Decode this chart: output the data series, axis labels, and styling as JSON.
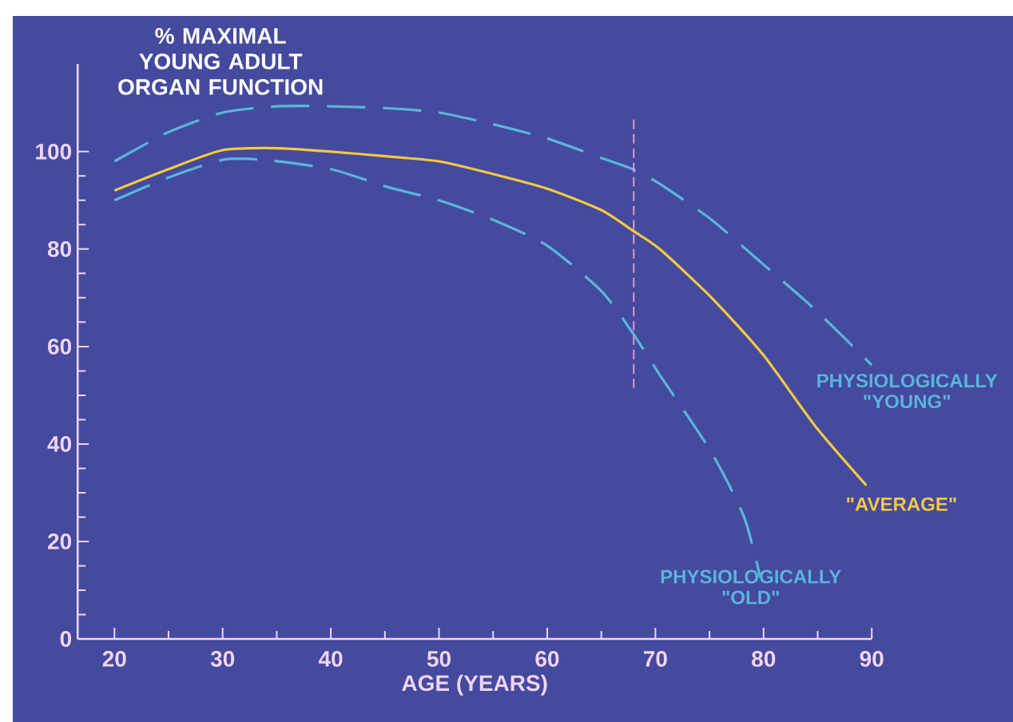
{
  "chart_data": {
    "type": "line",
    "ylabel": "% MAXIMAL YOUNG ADULT ORGAN FUNCTION",
    "xlabel": "AGE (YEARS)",
    "xlim": [
      16.6,
      90
    ],
    "ylim": [
      0,
      118
    ],
    "xticks": [
      20,
      30,
      40,
      50,
      60,
      70,
      80,
      90
    ],
    "yticks": [
      0,
      20,
      40,
      60,
      80,
      100
    ],
    "grid": false,
    "marker": "none",
    "series": [
      {
        "name": "PHYSIOLOGICALLY \"YOUNG\"",
        "color": "#5ab4dc",
        "line_style": "dashed",
        "x": [
          20,
          25,
          30,
          35,
          40,
          45.3,
          50,
          55,
          60,
          65,
          67.9,
          70.4,
          75.2,
          80,
          84.8,
          90
        ],
        "values": [
          98,
          104,
          108,
          109.3,
          109.3,
          108.9,
          108,
          105.6,
          102.7,
          98.7,
          96.4,
          93.4,
          86,
          76.8,
          67.5,
          56.2
        ]
      },
      {
        "name": "\"AVERAGE\"",
        "color": "#f5c842",
        "line_style": "solid",
        "x": [
          20,
          25,
          30,
          35,
          40,
          45.3,
          50,
          55,
          60,
          65,
          67.9,
          70.4,
          75.2,
          80,
          84.8,
          89.5
        ],
        "values": [
          92,
          96.4,
          100.3,
          100.7,
          100,
          99,
          98,
          95.4,
          92.4,
          88,
          83.8,
          80,
          70,
          58.2,
          43.6,
          31.5
        ]
      },
      {
        "name": "PHYSIOLOGICALLY \"OLD\"",
        "color": "#5ab4dc",
        "line_style": "dashed",
        "x": [
          20,
          25,
          30,
          33.9,
          40,
          45.3,
          50,
          55,
          60,
          65,
          67.9,
          70.4,
          75.2,
          78.2,
          79.7
        ],
        "values": [
          90,
          94.7,
          98.3,
          98.3,
          96.4,
          92.7,
          90,
          86,
          80.7,
          71.4,
          62.8,
          54.2,
          38.2,
          25,
          12.6
        ]
      },
      {
        "color": "#e8a0d8",
        "line_style": "dashed",
        "x": [
          68,
          68
        ],
        "values": [
          51.5,
          107
        ]
      }
    ]
  }
}
